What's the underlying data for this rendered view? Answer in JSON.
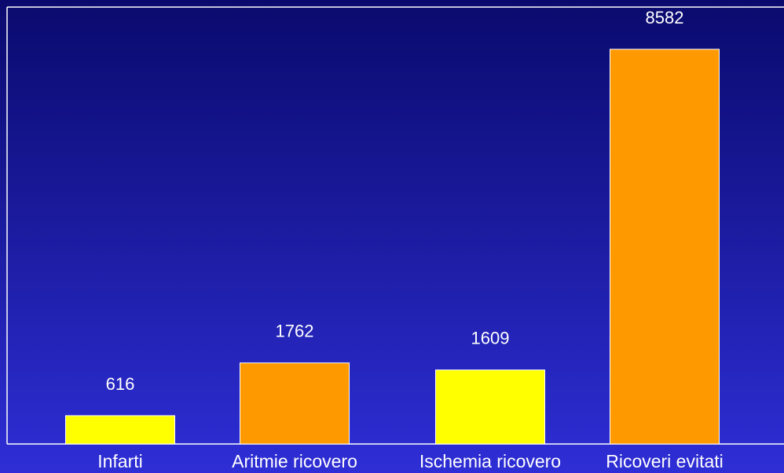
{
  "chart_data": {
    "type": "bar",
    "categories": [
      "Infarti",
      "Aritmie ricovero",
      "Ischemia ricovero",
      "Ricoveri evitati"
    ],
    "values": [
      616,
      1762,
      1609,
      8582
    ],
    "data_labels": [
      "616",
      "1762",
      "1609",
      "8582"
    ],
    "bar_colors": [
      "#ffff00",
      "#ff9900",
      "#ffff00",
      "#ff9900"
    ],
    "ylim": [
      0,
      9500
    ],
    "grid": false,
    "legend": "none",
    "title": "",
    "xlabel": "",
    "ylabel": ""
  }
}
